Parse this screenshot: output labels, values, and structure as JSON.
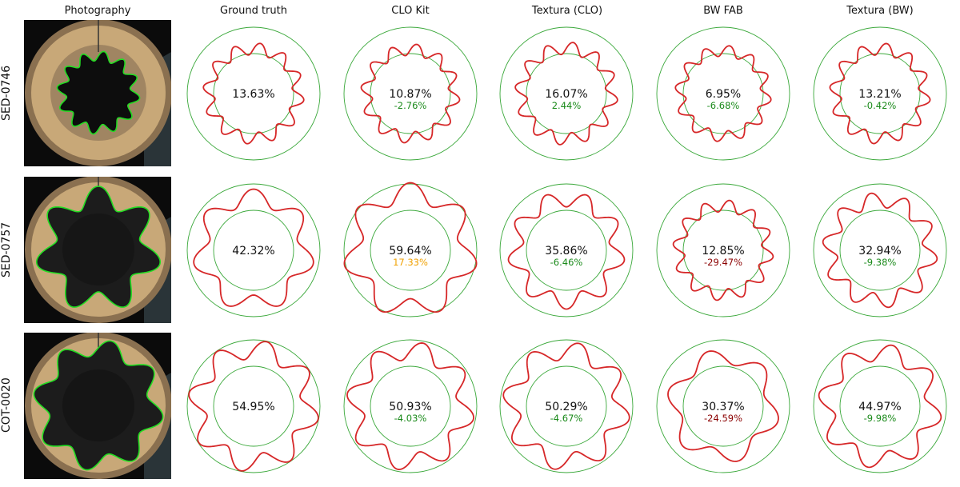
{
  "columns": [
    "Photography",
    "Ground truth",
    "CLO Kit",
    "Textura (CLO)",
    "BW FAB",
    "Textura (BW)"
  ],
  "colors": {
    "ring": "#3aa83a",
    "profile": "#d62728",
    "diff_ok": "#1a8a1a",
    "diff_warn": "#f0a000",
    "diff_bad": "#8b0000",
    "photo_outline": "#22dd22"
  },
  "rows": [
    {
      "label": "SED-0746",
      "cells": [
        {
          "pct": "13.63%",
          "diff": "",
          "diff_status": "none",
          "lobes": 12,
          "amplitude": 0.1363
        },
        {
          "pct": "10.87%",
          "diff": "-2.76%",
          "diff_status": "ok",
          "lobes": 12,
          "amplitude": 0.1087
        },
        {
          "pct": "16.07%",
          "diff": "2.44%",
          "diff_status": "ok",
          "lobes": 12,
          "amplitude": 0.1607
        },
        {
          "pct": "6.95%",
          "diff": "-6.68%",
          "diff_status": "ok",
          "lobes": 12,
          "amplitude": 0.0695
        },
        {
          "pct": "13.21%",
          "diff": "-0.42%",
          "diff_status": "ok",
          "lobes": 12,
          "amplitude": 0.1321
        }
      ]
    },
    {
      "label": "SED-0757",
      "cells": [
        {
          "pct": "42.32%",
          "diff": "",
          "diff_status": "none",
          "lobes": 7,
          "amplitude": 0.4232
        },
        {
          "pct": "59.64%",
          "diff": "17.33%",
          "diff_status": "warn",
          "lobes": 7,
          "amplitude": 0.5964
        },
        {
          "pct": "35.86%",
          "diff": "-6.46%",
          "diff_status": "ok",
          "lobes": 9,
          "amplitude": 0.3586
        },
        {
          "pct": "12.85%",
          "diff": "-29.47%",
          "diff_status": "bad",
          "lobes": 12,
          "amplitude": 0.1285
        },
        {
          "pct": "32.94%",
          "diff": "-9.38%",
          "diff_status": "ok",
          "lobes": 10,
          "amplitude": 0.3294
        }
      ]
    },
    {
      "label": "COT-0020",
      "cells": [
        {
          "pct": "54.95%",
          "diff": "",
          "diff_status": "none",
          "lobes": 8,
          "amplitude": 0.5495
        },
        {
          "pct": "50.93%",
          "diff": "-4.03%",
          "diff_status": "ok",
          "lobes": 8,
          "amplitude": 0.5093
        },
        {
          "pct": "50.29%",
          "diff": "-4.67%",
          "diff_status": "ok",
          "lobes": 8,
          "amplitude": 0.5029
        },
        {
          "pct": "30.37%",
          "diff": "-24.59%",
          "diff_status": "bad",
          "lobes": 6,
          "amplitude": 0.3037
        },
        {
          "pct": "44.97%",
          "diff": "-9.98%",
          "diff_status": "ok",
          "lobes": 8,
          "amplitude": 0.4497
        }
      ]
    }
  ]
}
